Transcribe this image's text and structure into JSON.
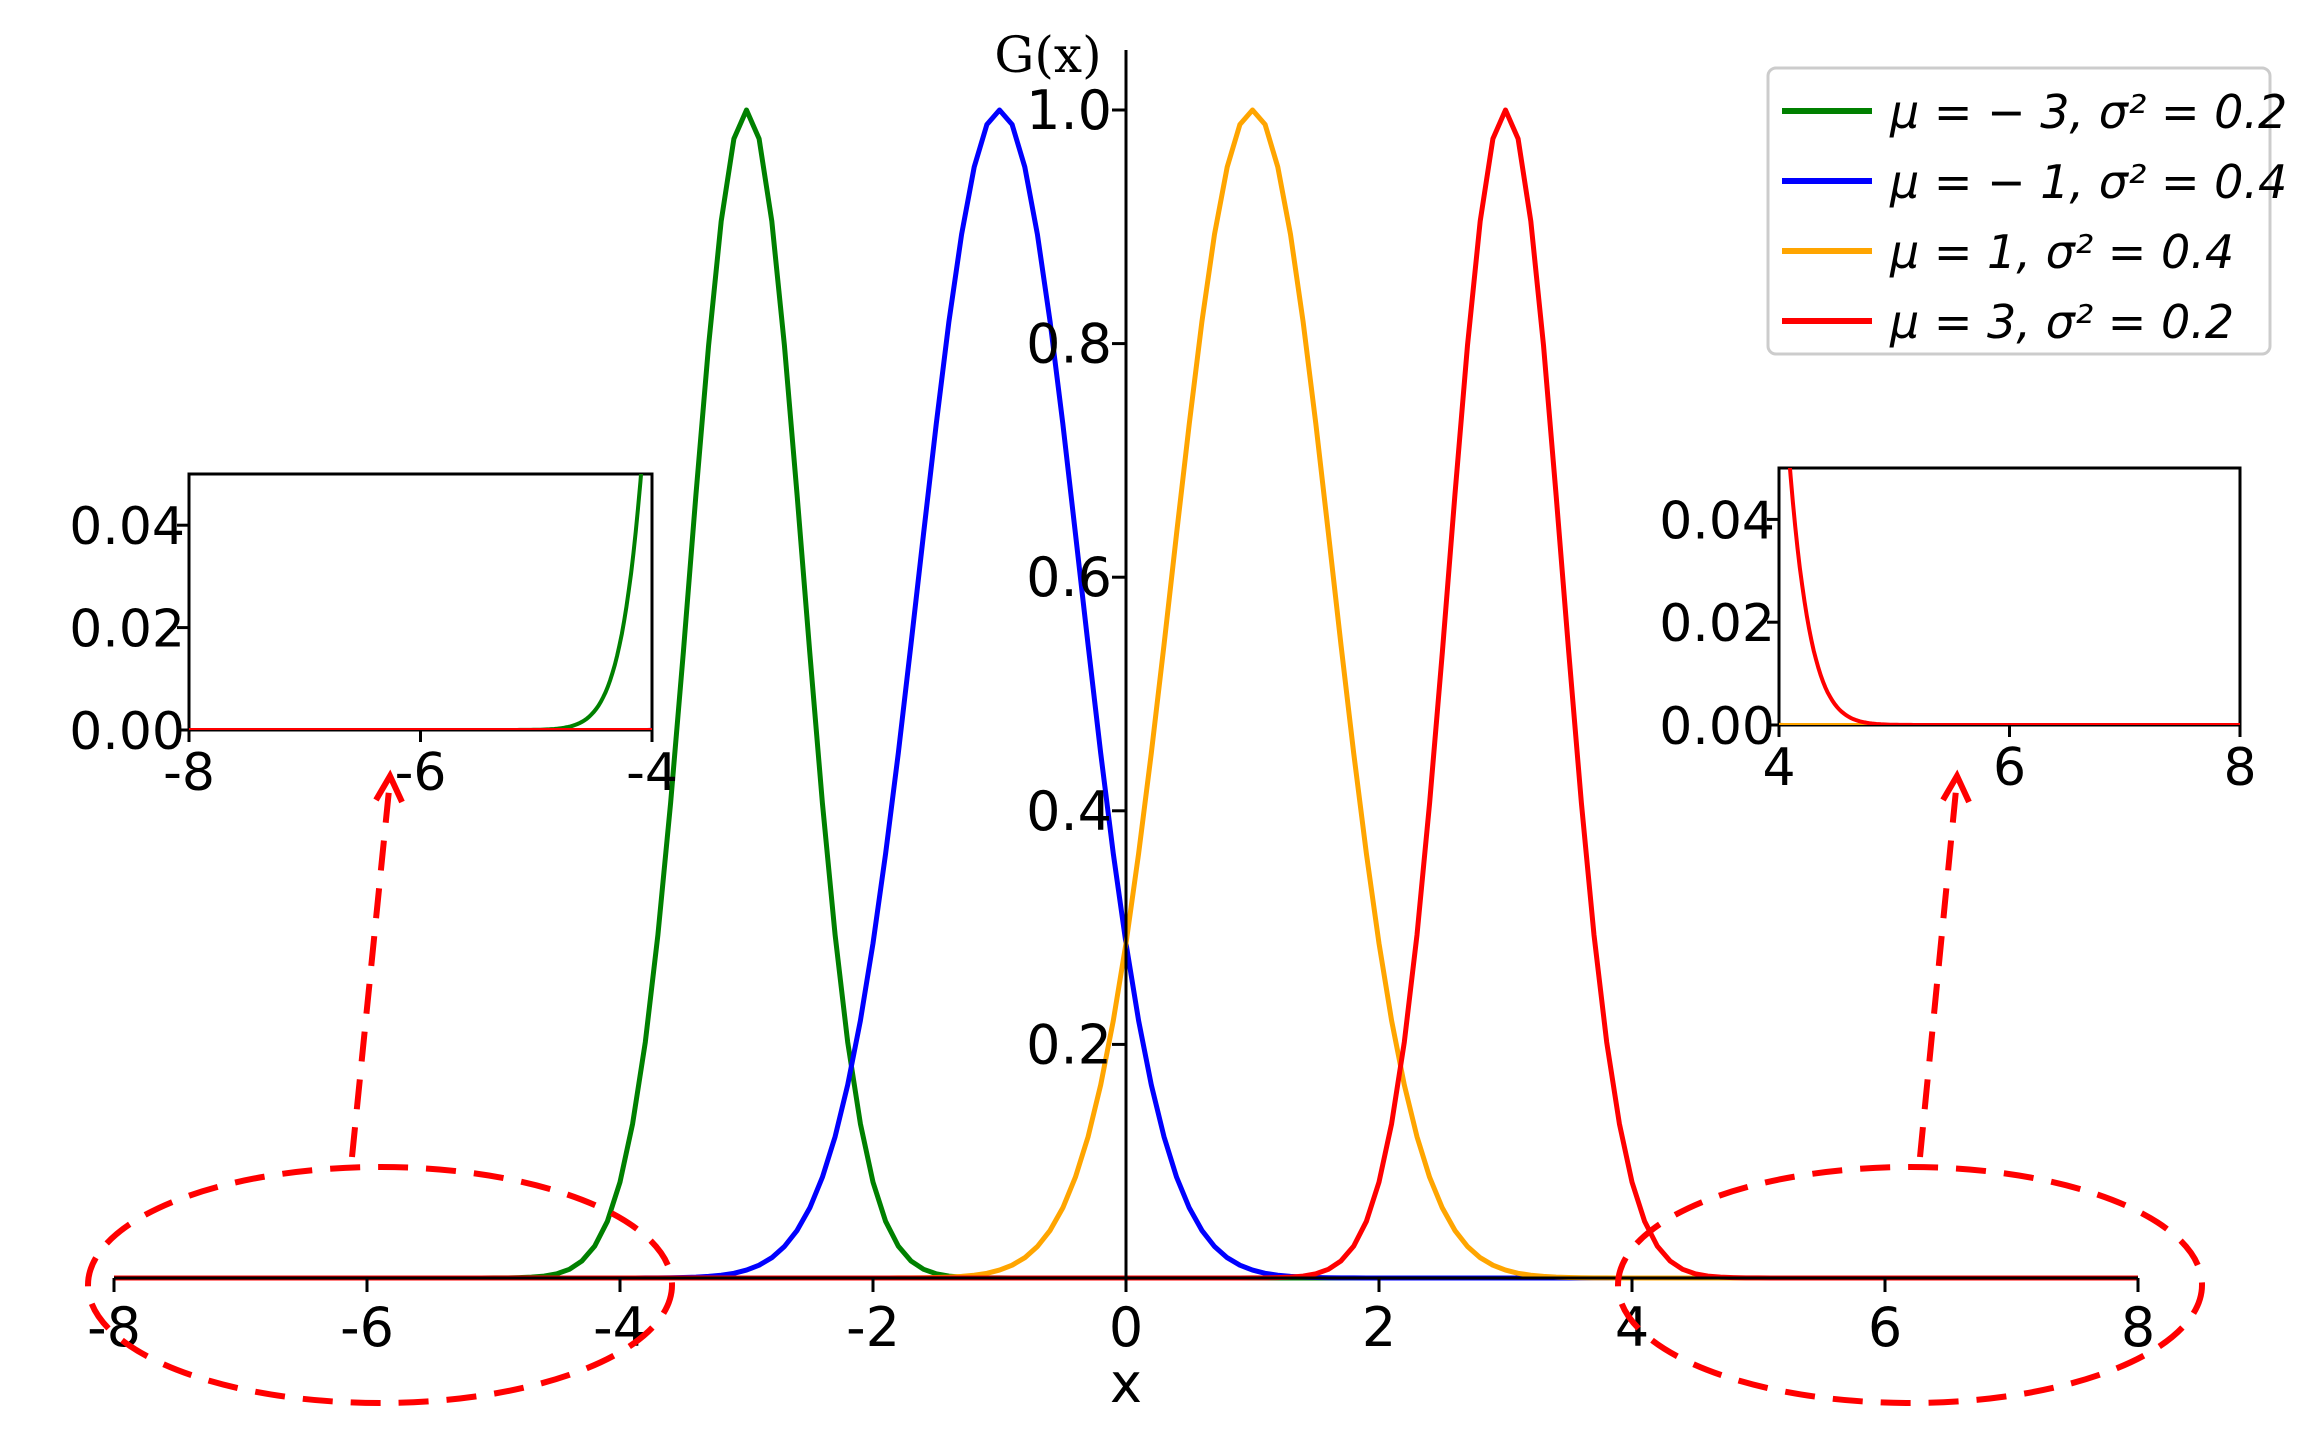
{
  "chart_data": [
    {
      "type": "line",
      "role": "main",
      "ylabel": "G(x)",
      "xlabel": "x",
      "xlim": [
        -8,
        8
      ],
      "ylim": [
        0,
        1.0
      ],
      "x_ticks": [
        -8,
        -6,
        -4,
        -2,
        0,
        2,
        4,
        6,
        8
      ],
      "x_tick_labels": [
        "-8",
        "-6",
        "-4",
        "-2",
        "0",
        "2",
        "4",
        "6",
        "8"
      ],
      "y_ticks": [
        0.2,
        0.4,
        0.6,
        0.8,
        1.0
      ],
      "y_tick_labels": [
        "0.2",
        "0.4",
        "0.6",
        "0.8",
        "1.0"
      ],
      "grid": false,
      "legend_position": "top-right",
      "series": [
        {
          "name": "μ = − 3, σ² = 0.2",
          "mu": -3,
          "sigma2": 0.2,
          "color": "#008000"
        },
        {
          "name": "μ = − 1, σ² = 0.4",
          "mu": -1,
          "sigma2": 0.4,
          "color": "#0000ff"
        },
        {
          "name": "μ = 1, σ² = 0.4",
          "mu": 1,
          "sigma2": 0.4,
          "color": "#ffa500"
        },
        {
          "name": "μ = 3, σ² = 0.2",
          "mu": 3,
          "sigma2": 0.2,
          "color": "#ff0000"
        }
      ]
    },
    {
      "type": "line",
      "role": "inset-left",
      "xlim": [
        -8,
        -4
      ],
      "ylim": [
        0,
        0.05
      ],
      "x_ticks": [
        -8,
        -6,
        -4
      ],
      "x_tick_labels": [
        "-8",
        "-6",
        "-4"
      ],
      "y_ticks": [
        0,
        0.02,
        0.04
      ],
      "y_tick_labels": [
        "0.00",
        "0.02",
        "0.04"
      ]
    },
    {
      "type": "line",
      "role": "inset-right",
      "xlim": [
        4,
        8
      ],
      "ylim": [
        0,
        0.05
      ],
      "x_ticks": [
        4,
        6,
        8
      ],
      "x_tick_labels": [
        "4",
        "6",
        "8"
      ],
      "y_ticks": [
        0,
        0.02,
        0.04
      ],
      "y_tick_labels": [
        "0.00",
        "0.02",
        "0.04"
      ]
    }
  ],
  "annotation_color": "#ff0000"
}
